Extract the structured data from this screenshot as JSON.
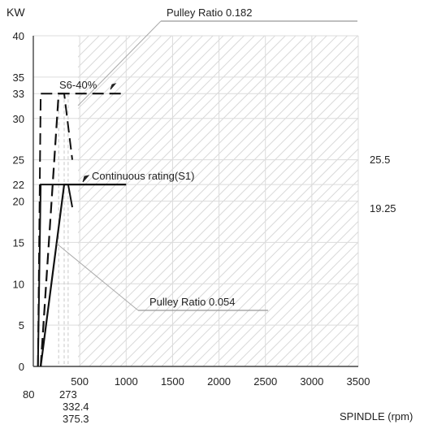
{
  "chart_data": {
    "type": "line",
    "ylabel": "KW",
    "xlabel": "SPINDLE (rpm)",
    "xlim": [
      0,
      3500
    ],
    "ylim": [
      0,
      40
    ],
    "grid": true,
    "y_ticks": [
      0,
      5,
      10,
      15,
      20,
      22,
      25,
      30,
      33,
      35,
      40
    ],
    "x_ticks": [
      500,
      1000,
      1500,
      2000,
      2500,
      3000,
      3500
    ],
    "x_extra_ticks": [
      "80",
      "273",
      "332.4",
      "375.3"
    ],
    "right_labels": [
      "25.5",
      "19.25"
    ],
    "annotations": [
      "Pulley Ratio 0.182",
      "Pulley Ratio  0.054",
      "S6-40%",
      "Continuous rating(S1)"
    ],
    "series": [
      {
        "name": "S6-40%",
        "style": "dashed",
        "points": [
          [
            80,
            0
          ],
          [
            273,
            33
          ],
          [
            1000,
            33
          ]
        ],
        "low_range": [
          [
            50,
            0
          ],
          [
            80,
            33
          ],
          [
            332.4,
            33
          ],
          [
            420,
            25
          ]
        ]
      },
      {
        "name": "Continuous rating(S1)",
        "style": "solid",
        "points": [
          [
            80,
            0
          ],
          [
            332.4,
            22
          ],
          [
            1000,
            22
          ]
        ],
        "low_range": [
          [
            50,
            0
          ],
          [
            80,
            22
          ],
          [
            375.3,
            22
          ],
          [
            420,
            19.25
          ]
        ]
      }
    ]
  }
}
